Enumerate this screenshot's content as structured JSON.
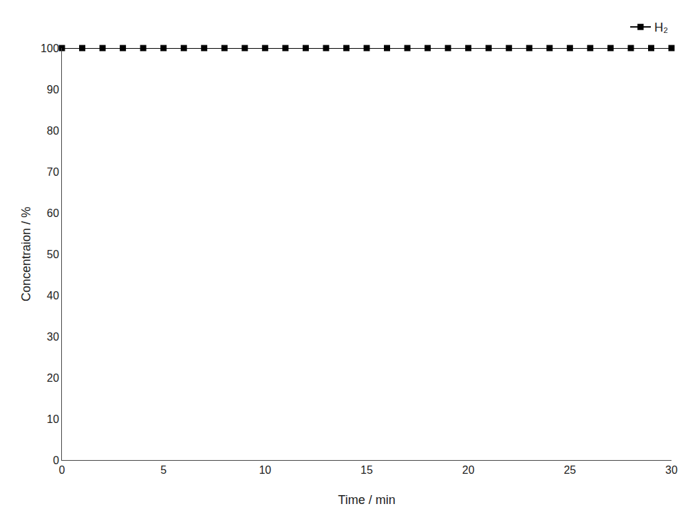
{
  "chart_data": {
    "type": "line",
    "xlabel": "Time / min",
    "ylabel": "Concentraion / %",
    "x": [
      0,
      1,
      2,
      3,
      4,
      5,
      6,
      7,
      8,
      9,
      10,
      11,
      12,
      13,
      14,
      15,
      16,
      17,
      18,
      19,
      20,
      21,
      22,
      23,
      24,
      25,
      26,
      27,
      28,
      29,
      30
    ],
    "series": [
      {
        "name": "H₂",
        "color": "black",
        "marker": "square",
        "values": [
          100,
          100,
          100,
          100,
          100,
          100,
          100,
          100,
          100,
          100,
          100,
          100,
          100,
          100,
          100,
          100,
          100,
          100,
          100,
          100,
          100,
          100,
          100,
          100,
          100,
          100,
          100,
          100,
          100,
          100,
          100
        ]
      }
    ],
    "xlim": [
      0,
      30
    ],
    "ylim": [
      0,
      100
    ],
    "xticks": [
      0,
      5,
      10,
      15,
      20,
      25,
      30
    ],
    "yticks": [
      0,
      10,
      20,
      30,
      40,
      50,
      60,
      70,
      80,
      90,
      100
    ],
    "grid": false,
    "legend": "upper right"
  }
}
